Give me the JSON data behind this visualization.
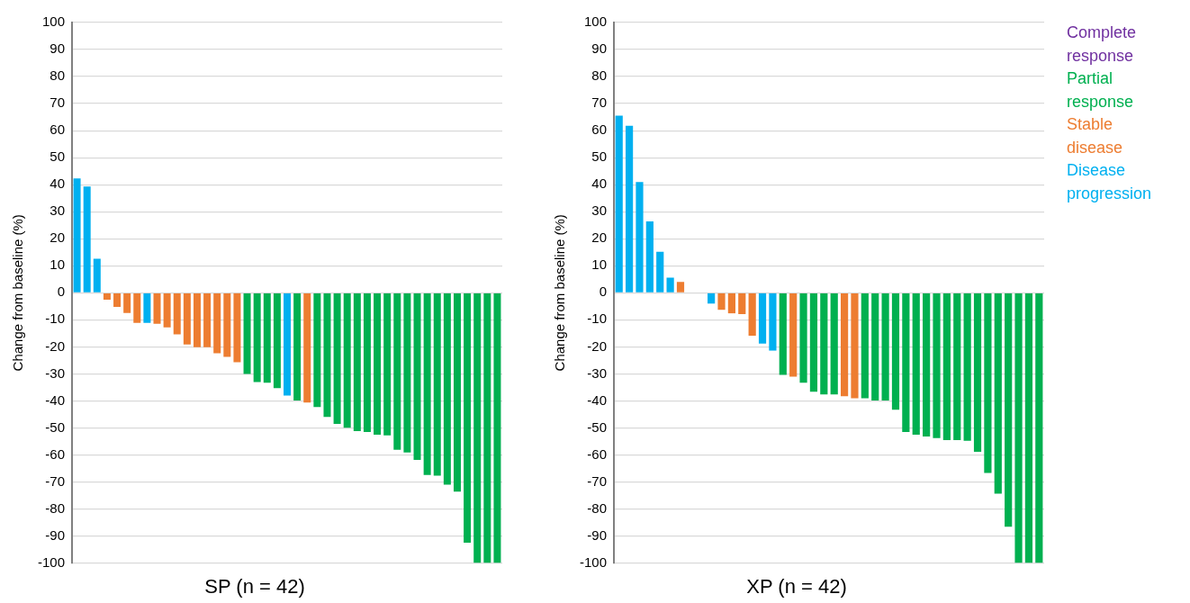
{
  "chart_data": [
    {
      "type": "bar",
      "title": "SP (n = 42)",
      "ylabel": "Change from baseline (%)",
      "stacked": true,
      "tick_labels": "y",
      "grid": "y",
      "legend": false,
      "categories": [
        null,
        null,
        null,
        null,
        null,
        null,
        null,
        null,
        null,
        null,
        null,
        null,
        null,
        null,
        null,
        null,
        null,
        null,
        null,
        null,
        null,
        null,
        null,
        null,
        null,
        null,
        null,
        null,
        null,
        null,
        null,
        null,
        null,
        null,
        null,
        null,
        null,
        null,
        null,
        null,
        null,
        null,
        null
      ],
      "ylim": [
        -100,
        100
      ],
      "yticks": [
        -100,
        -90,
        -80,
        -70,
        -60,
        -50,
        -40,
        -30,
        -20,
        -10,
        0,
        10,
        20,
        30,
        40,
        50,
        60,
        70,
        80,
        90,
        100
      ],
      "series": [
        {
          "color": "#7030a0",
          "values": [
            null,
            null,
            null,
            null,
            null,
            null,
            null,
            null,
            null,
            null,
            null,
            null,
            null,
            null,
            null,
            null,
            null,
            null,
            null,
            null,
            null,
            null,
            null,
            null,
            null,
            null,
            null,
            null,
            null,
            null,
            null,
            null,
            null,
            null,
            null,
            null,
            null,
            null,
            null,
            null,
            null,
            null,
            null
          ]
        },
        {
          "color": "#00b050",
          "values": [
            null,
            null,
            null,
            null,
            null,
            null,
            null,
            null,
            null,
            null,
            null,
            null,
            null,
            null,
            null,
            null,
            null,
            -30,
            -33,
            -33.3,
            -35.3,
            null,
            -39.9,
            null,
            -42.3,
            -45.9,
            -48.5,
            -49.9,
            -51.2,
            -51.5,
            -52.5,
            -52.8,
            -58.1,
            -59.1,
            -61.8,
            -67.4,
            -67.7,
            -71,
            -73.6,
            -92.5,
            -100,
            -100,
            -100
          ]
        },
        {
          "color": "#ed7d31",
          "values": [
            null,
            null,
            null,
            -2.6,
            -5.2,
            -7.5,
            -11.1,
            null,
            -11.5,
            -12.8,
            -15.4,
            -19.1,
            -20.1,
            -20.1,
            -22.4,
            -23.7,
            -25.7,
            null,
            null,
            null,
            null,
            null,
            null,
            -40.6,
            null,
            null,
            null,
            null,
            null,
            null,
            null,
            null,
            null,
            null,
            null,
            null,
            null,
            null,
            null,
            null,
            null,
            null,
            null
          ]
        },
        {
          "color": "#00b0f0",
          "values": [
            42.3,
            39.3,
            12.6,
            null,
            null,
            null,
            null,
            -11.1,
            null,
            null,
            null,
            null,
            null,
            null,
            null,
            null,
            null,
            null,
            null,
            null,
            null,
            -38,
            null,
            null,
            null,
            null,
            null,
            null,
            null,
            null,
            null,
            null,
            null,
            null,
            null,
            null,
            null,
            null,
            null,
            null,
            null,
            null,
            null
          ]
        }
      ]
    },
    {
      "type": "bar",
      "title": "XP (n = 42)",
      "ylabel": "Change from baseline (%)",
      "stacked": true,
      "tick_labels": "y",
      "grid": "y",
      "legend": "right",
      "categories": [
        null,
        null,
        null,
        null,
        null,
        null,
        null,
        null,
        null,
        null,
        null,
        null,
        null,
        null,
        null,
        null,
        null,
        null,
        null,
        null,
        null,
        null,
        null,
        null,
        null,
        null,
        null,
        null,
        null,
        null,
        null,
        null,
        null,
        null,
        null,
        null,
        null,
        null,
        null,
        null,
        null,
        null
      ],
      "ylim": [
        -100,
        100
      ],
      "yticks": [
        -100,
        -90,
        -80,
        -70,
        -60,
        -50,
        -40,
        -30,
        -20,
        -10,
        0,
        10,
        20,
        30,
        40,
        50,
        60,
        70,
        80,
        90,
        100
      ],
      "series": [
        {
          "name": "Complete response",
          "color": "#7030a0",
          "values": [
            null,
            null,
            null,
            null,
            null,
            null,
            null,
            null,
            null,
            null,
            null,
            null,
            null,
            null,
            null,
            null,
            null,
            null,
            null,
            null,
            null,
            null,
            null,
            null,
            null,
            null,
            null,
            null,
            null,
            null,
            null,
            null,
            null,
            null,
            null,
            null,
            null,
            null,
            null,
            null,
            null,
            null
          ]
        },
        {
          "name": "Partial response",
          "color": "#00b050",
          "values": [
            null,
            null,
            null,
            null,
            null,
            null,
            null,
            null,
            null,
            null,
            null,
            null,
            null,
            null,
            null,
            null,
            -30.4,
            null,
            -33.3,
            -36.6,
            -37.6,
            -37.6,
            null,
            null,
            -39,
            -39.9,
            -39.9,
            -43.3,
            -51.5,
            -52.5,
            -53.2,
            -53.8,
            -54.5,
            -54.5,
            -54.8,
            -58.8,
            -66.7,
            -74.3,
            -86.6,
            -100,
            -100,
            -100
          ]
        },
        {
          "name": "Stable disease",
          "color": "#ed7d31",
          "values": [
            null,
            null,
            null,
            null,
            null,
            null,
            4,
            null,
            null,
            null,
            -6.3,
            -7.6,
            -7.9,
            -15.9,
            null,
            null,
            null,
            -31,
            null,
            null,
            null,
            null,
            -38.3,
            -39,
            null,
            null,
            null,
            null,
            null,
            null,
            null,
            null,
            null,
            null,
            null,
            null,
            null,
            null,
            null,
            null,
            null,
            null
          ]
        },
        {
          "name": "Disease progression",
          "color": "#00b0f0",
          "values": [
            65.5,
            61.8,
            41,
            26.4,
            15.2,
            5.6,
            null,
            null,
            null,
            -4,
            null,
            null,
            null,
            null,
            -18.8,
            -21.4,
            null,
            null,
            null,
            null,
            null,
            null,
            null,
            null,
            null,
            null,
            null,
            null,
            null,
            null,
            null,
            null,
            null,
            null,
            null,
            null,
            null,
            null,
            null,
            null,
            null,
            null
          ]
        }
      ]
    }
  ]
}
